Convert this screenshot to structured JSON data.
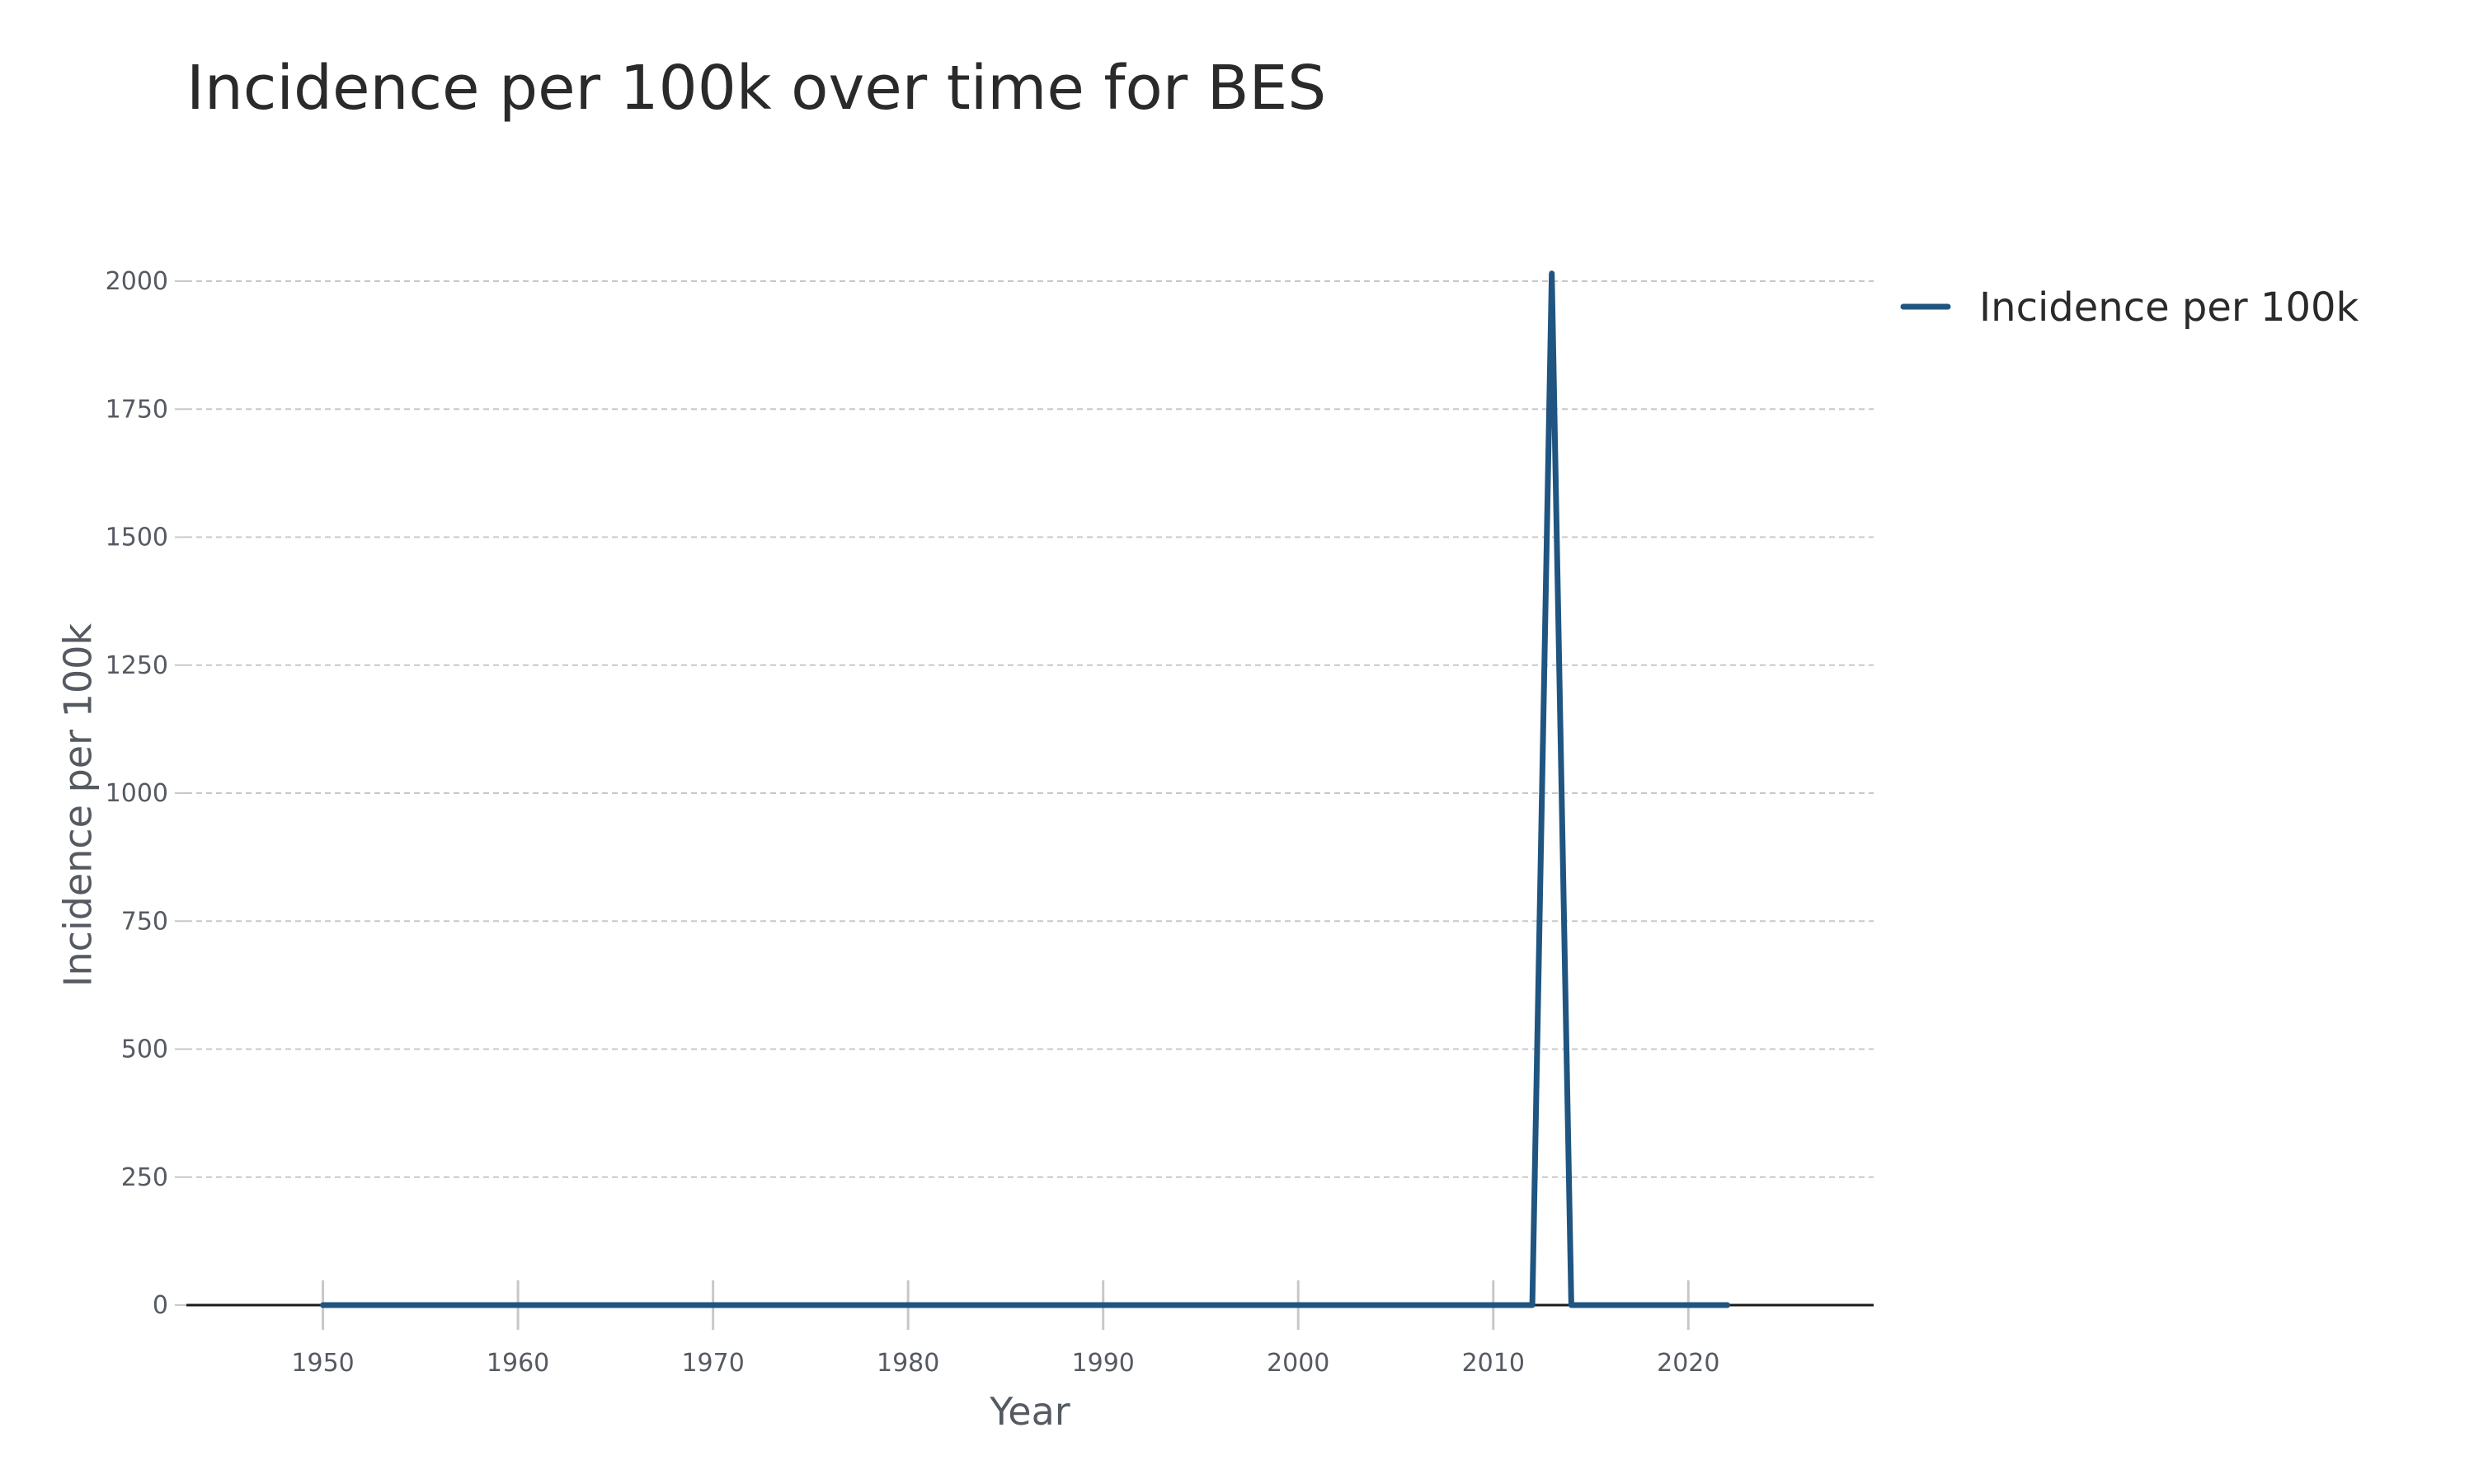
{
  "chart_data": {
    "type": "line",
    "title": "Incidence per 100k over time for BES",
    "xlabel": "Year",
    "ylabel": "Incidence per 100k",
    "xlim": [
      1943,
      2029.5
    ],
    "ylim": [
      0,
      2050
    ],
    "x_ticks": [
      1950,
      1960,
      1970,
      1980,
      1990,
      2000,
      2010,
      2020
    ],
    "y_ticks": [
      0,
      250,
      500,
      750,
      1000,
      1250,
      1500,
      1750,
      2000
    ],
    "grid": true,
    "legend_position": "top-right",
    "series": [
      {
        "name": "Incidence per 100k",
        "color": "#1f5580",
        "x": [
          1950,
          1951,
          1952,
          1953,
          1954,
          1955,
          1956,
          1957,
          1958,
          1959,
          1960,
          1961,
          1962,
          1963,
          1964,
          1965,
          1966,
          1967,
          1968,
          1969,
          1970,
          1971,
          1972,
          1973,
          1974,
          1975,
          1976,
          1977,
          1978,
          1979,
          1980,
          1981,
          1982,
          1983,
          1984,
          1985,
          1986,
          1987,
          1988,
          1989,
          1990,
          1991,
          1992,
          1993,
          1994,
          1995,
          1996,
          1997,
          1998,
          1999,
          2000,
          2001,
          2002,
          2003,
          2004,
          2005,
          2006,
          2007,
          2008,
          2009,
          2010,
          2011,
          2012,
          2013,
          2014,
          2015,
          2016,
          2017,
          2018,
          2019,
          2020,
          2021,
          2022
        ],
        "values": [
          0,
          0,
          0,
          0,
          0,
          0,
          0,
          0,
          0,
          0,
          0,
          0,
          0,
          0,
          0,
          0,
          0,
          0,
          0,
          0,
          0,
          0,
          0,
          0,
          0,
          0,
          0,
          0,
          0,
          0,
          0,
          0,
          0,
          0,
          0,
          0,
          0,
          0,
          0,
          0,
          0,
          0,
          0,
          0,
          0,
          0,
          0,
          0,
          0,
          0,
          0,
          0,
          0,
          0,
          0,
          0,
          0,
          0,
          0,
          0,
          0,
          0,
          0,
          2015,
          0,
          0,
          0,
          0,
          0,
          0,
          0,
          0,
          0
        ]
      }
    ]
  }
}
